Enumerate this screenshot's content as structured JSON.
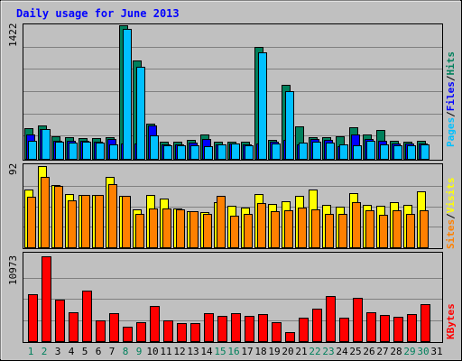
{
  "title": "Daily usage for June 2013",
  "colors": {
    "hits": "#00805c",
    "files": "#0000ff",
    "pages": "#00c0ff",
    "visits": "#ffff00",
    "sites": "#ff8000",
    "kbytes": "#ff0000",
    "weekend": "#00805c",
    "weekday": "#000000",
    "title": "#0000ff",
    "panel": "#c0c0c0"
  },
  "chart_data": [
    {
      "type": "bar",
      "panel": "top",
      "max_label": "1422",
      "ylim": [
        0,
        1422
      ],
      "categories": [
        "1",
        "2",
        "3",
        "4",
        "5",
        "6",
        "7",
        "8",
        "9",
        "10",
        "11",
        "12",
        "13",
        "14",
        "15",
        "16",
        "17",
        "18",
        "19",
        "20",
        "21",
        "22",
        "23",
        "24",
        "25",
        "26",
        "27",
        "28",
        "29",
        "30",
        "31"
      ],
      "legend": [
        {
          "text": "Pages",
          "color": "#00c0ff"
        },
        {
          "text": "/",
          "color": "#000000"
        },
        {
          "text": "Files",
          "color": "#0000ff"
        },
        {
          "text": "/",
          "color": "#000000"
        },
        {
          "text": "Hits",
          "color": "#00805c"
        }
      ],
      "series": [
        {
          "name": "Hits",
          "values": [
            322,
            359,
            240,
            226,
            225,
            225,
            232,
            1422,
            1043,
            378,
            179,
            181,
            201,
            257,
            180,
            181,
            178,
            1196,
            201,
            792,
            347,
            227,
            227,
            242,
            335,
            262,
            308,
            192,
            180,
            195,
            0
          ]
        },
        {
          "name": "Files",
          "values": [
            257,
            320,
            194,
            188,
            194,
            186,
            210,
            159,
            159,
            360,
            154,
            154,
            176,
            213,
            151,
            159,
            152,
            159,
            178,
            197,
            154,
            207,
            198,
            138,
            261,
            215,
            188,
            163,
            159,
            159,
            0
          ]
        },
        {
          "name": "Pages",
          "values": [
            195,
            317,
            178,
            175,
            178,
            175,
            158,
            1382,
            983,
            250,
            140,
            145,
            148,
            132,
            149,
            160,
            144,
            1138,
            164,
            721,
            175,
            180,
            177,
            153,
            145,
            192,
            150,
            146,
            140,
            150,
            0
          ]
        }
      ]
    },
    {
      "type": "bar",
      "panel": "middle",
      "max_label": "92",
      "ylim": [
        0,
        92
      ],
      "categories": [
        "1",
        "2",
        "3",
        "4",
        "5",
        "6",
        "7",
        "8",
        "9",
        "10",
        "11",
        "12",
        "13",
        "14",
        "15",
        "16",
        "17",
        "18",
        "19",
        "20",
        "21",
        "22",
        "23",
        "24",
        "25",
        "26",
        "27",
        "28",
        "29",
        "30",
        "31"
      ],
      "legend": [
        {
          "text": "Sites",
          "color": "#ff8000"
        },
        {
          "text": "/",
          "color": "#000000"
        },
        {
          "text": "Visits",
          "color": "#ffff00"
        }
      ],
      "series": [
        {
          "name": "Visits",
          "values": [
            65,
            92,
            71,
            60,
            59,
            59,
            80,
            58,
            43,
            59,
            55,
            44,
            41,
            40,
            51,
            47,
            45,
            60,
            49,
            52,
            58,
            65,
            48,
            46,
            61,
            48,
            47,
            51,
            48,
            63,
            0
          ]
        },
        {
          "name": "Sites",
          "values": [
            57,
            80,
            69,
            53,
            59,
            59,
            72,
            58,
            38,
            44,
            44,
            43,
            41,
            38,
            58,
            36,
            38,
            50,
            41,
            42,
            45,
            43,
            38,
            38,
            51,
            42,
            37,
            42,
            38,
            42,
            0
          ]
        }
      ]
    },
    {
      "type": "bar",
      "panel": "bottom",
      "max_label": "10973",
      "ylim": [
        0,
        10973
      ],
      "categories": [
        "1",
        "2",
        "3",
        "4",
        "5",
        "6",
        "7",
        "8",
        "9",
        "10",
        "11",
        "12",
        "13",
        "14",
        "15",
        "16",
        "17",
        "18",
        "19",
        "20",
        "21",
        "22",
        "23",
        "24",
        "25",
        "26",
        "27",
        "28",
        "29",
        "30",
        "31"
      ],
      "legend": [
        {
          "text": "KBytes",
          "color": "#ff0000"
        }
      ],
      "series": [
        {
          "name": "KBytes",
          "values": [
            6029,
            10973,
            5377,
            3699,
            6481,
            2699,
            3591,
            1898,
            2398,
            4549,
            2698,
            2348,
            2324,
            3578,
            3296,
            3598,
            3298,
            3478,
            2492,
            1199,
            3026,
            4199,
            5864,
            3023,
            5602,
            3785,
            3427,
            3138,
            3524,
            4839,
            0
          ]
        }
      ]
    }
  ],
  "x_labels": [
    {
      "text": "1",
      "weekend": true
    },
    {
      "text": "2",
      "weekend": true
    },
    {
      "text": "3",
      "weekend": false
    },
    {
      "text": "4",
      "weekend": false
    },
    {
      "text": "5",
      "weekend": false
    },
    {
      "text": "6",
      "weekend": false
    },
    {
      "text": "7",
      "weekend": false
    },
    {
      "text": "8",
      "weekend": true
    },
    {
      "text": "9",
      "weekend": true
    },
    {
      "text": "10",
      "weekend": false
    },
    {
      "text": "11",
      "weekend": false
    },
    {
      "text": "12",
      "weekend": false
    },
    {
      "text": "13",
      "weekend": false
    },
    {
      "text": "14",
      "weekend": false
    },
    {
      "text": "15",
      "weekend": true
    },
    {
      "text": "16",
      "weekend": true
    },
    {
      "text": "17",
      "weekend": false
    },
    {
      "text": "18",
      "weekend": false
    },
    {
      "text": "19",
      "weekend": false
    },
    {
      "text": "20",
      "weekend": false
    },
    {
      "text": "21",
      "weekend": false
    },
    {
      "text": "22",
      "weekend": true
    },
    {
      "text": "23",
      "weekend": true
    },
    {
      "text": "24",
      "weekend": false
    },
    {
      "text": "25",
      "weekend": false
    },
    {
      "text": "26",
      "weekend": false
    },
    {
      "text": "27",
      "weekend": false
    },
    {
      "text": "28",
      "weekend": false
    },
    {
      "text": "29",
      "weekend": true
    },
    {
      "text": "30",
      "weekend": true
    },
    {
      "text": "31",
      "weekend": false
    }
  ]
}
